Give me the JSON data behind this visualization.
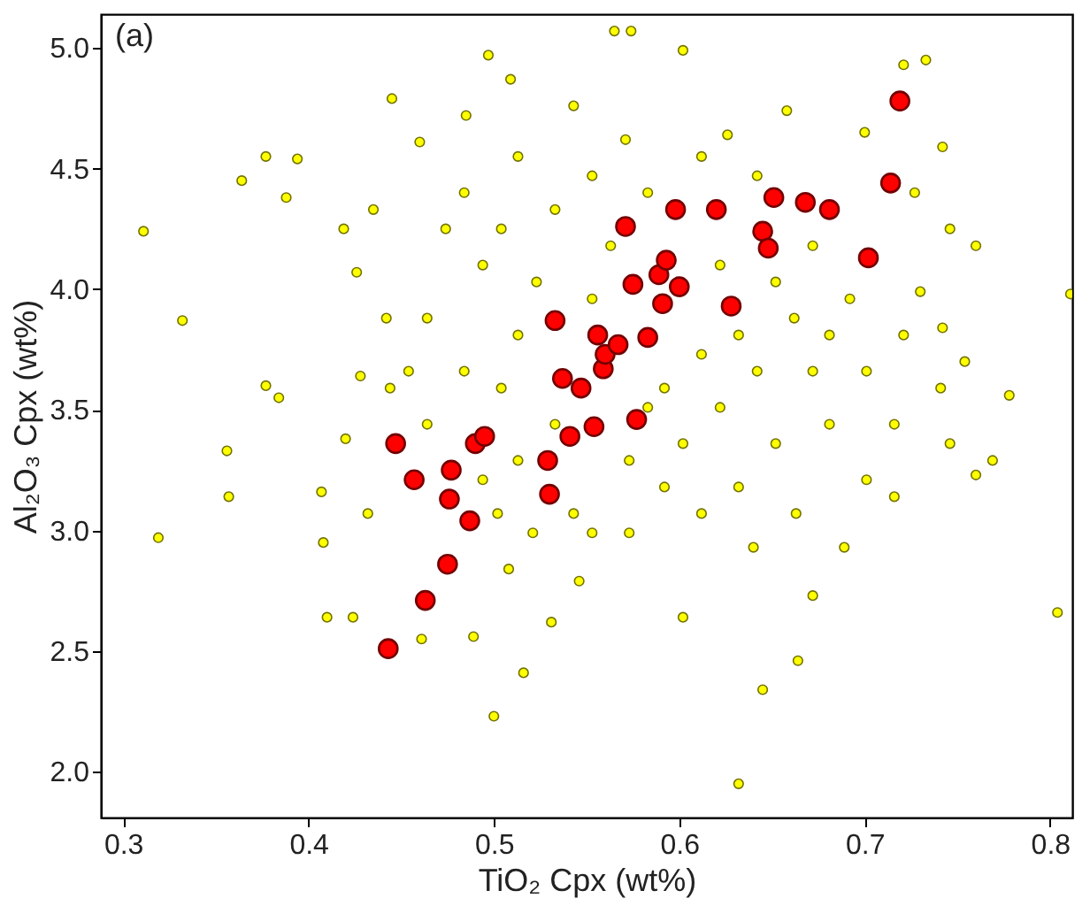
{
  "chart_data": {
    "type": "scatter",
    "xlabel": "TiO₂ Cpx (wt%)",
    "ylabel": "Al₂O₃ Cpx (wt%)",
    "xlim": [
      0.288,
      0.812
    ],
    "ylim": [
      1.81,
      5.14
    ],
    "xticks": [
      0.3,
      0.4,
      0.5,
      0.6,
      0.7,
      0.8
    ],
    "yticks": [
      {
        "value": 2,
        "label": "2.0"
      },
      2.5,
      {
        "value": 3,
        "label": "3.0"
      },
      3.5,
      {
        "value": 4,
        "label": "4.0"
      },
      4.5,
      {
        "value": 5,
        "label": "5.0"
      }
    ],
    "grid": false,
    "marker": "circle",
    "annotations": [
      "(a)"
    ],
    "series": [
      {
        "color": "#ffff00",
        "x": [
          0.311,
          0.319,
          0.332,
          0.357,
          0.356,
          0.364,
          0.377,
          0.388,
          0.394,
          0.384,
          0.377,
          0.407,
          0.408,
          0.424,
          0.41,
          0.445,
          0.5,
          0.516,
          0.632,
          0.645,
          0.664,
          0.804,
          0.811,
          0.778,
          0.742,
          0.76,
          0.746,
          0.769,
          0.733,
          0.721,
          0.565,
          0.574,
          0.602,
          0.497,
          0.64,
          0.672,
          0.602,
          0.546,
          0.508,
          0.531,
          0.489,
          0.461,
          0.432,
          0.42,
          0.428,
          0.442,
          0.426,
          0.419,
          0.435,
          0.46,
          0.485,
          0.509,
          0.543,
          0.571,
          0.626,
          0.658,
          0.7,
          0.727,
          0.73,
          0.742,
          0.754,
          0.716,
          0.701,
          0.716,
          0.689,
          0.663,
          0.632,
          0.612,
          0.592,
          0.573,
          0.553,
          0.521,
          0.502,
          0.504,
          0.513,
          0.523,
          0.494,
          0.474,
          0.464,
          0.454,
          0.533,
          0.553,
          0.583,
          0.612,
          0.642,
          0.672,
          0.692,
          0.672,
          0.642,
          0.622,
          0.602,
          0.652,
          0.681,
          0.701,
          0.721,
          0.612,
          0.632,
          0.662,
          0.592,
          0.573,
          0.543,
          0.464,
          0.444,
          0.484,
          0.484,
          0.513,
          0.504,
          0.563,
          0.622,
          0.652,
          0.681,
          0.553,
          0.583,
          0.533,
          0.513,
          0.494,
          0.741,
          0.76,
          0.746
        ],
        "values": [
          4.24,
          2.97,
          3.87,
          3.14,
          3.33,
          4.45,
          4.55,
          4.38,
          4.54,
          3.55,
          3.6,
          3.16,
          2.95,
          2.64,
          2.64,
          4.79,
          2.23,
          2.41,
          1.95,
          2.34,
          2.46,
          2.66,
          3.98,
          3.56,
          4.59,
          3.23,
          3.36,
          3.29,
          4.95,
          4.93,
          5.07,
          5.07,
          4.99,
          4.97,
          2.93,
          2.73,
          2.64,
          2.79,
          2.84,
          2.62,
          2.56,
          2.55,
          3.07,
          3.38,
          3.64,
          3.88,
          4.07,
          4.25,
          4.33,
          4.61,
          4.72,
          4.87,
          4.76,
          4.62,
          4.64,
          4.74,
          4.65,
          4.4,
          3.99,
          3.84,
          3.7,
          3.44,
          3.21,
          3.14,
          2.93,
          3.07,
          3.18,
          3.07,
          3.18,
          2.99,
          2.99,
          2.99,
          3.07,
          3.59,
          3.81,
          4.03,
          4.1,
          4.25,
          3.88,
          3.66,
          4.33,
          4.47,
          4.4,
          4.55,
          4.47,
          4.18,
          3.96,
          3.66,
          3.66,
          3.51,
          3.36,
          3.36,
          3.44,
          3.66,
          3.81,
          3.73,
          3.81,
          3.88,
          3.59,
          3.29,
          3.07,
          3.44,
          3.59,
          3.66,
          4.4,
          4.55,
          4.25,
          4.18,
          4.1,
          4.03,
          3.81,
          3.96,
          3.51,
          3.44,
          3.29,
          3.21,
          3.59,
          4.18,
          4.25
        ]
      },
      {
        "color": "#ff0000",
        "x": [
          0.443,
          0.463,
          0.475,
          0.487,
          0.476,
          0.457,
          0.477,
          0.447,
          0.49,
          0.495,
          0.53,
          0.529,
          0.541,
          0.554,
          0.577,
          0.547,
          0.537,
          0.533,
          0.556,
          0.559,
          0.56,
          0.567,
          0.583,
          0.575,
          0.589,
          0.6,
          0.591,
          0.593,
          0.571,
          0.598,
          0.62,
          0.645,
          0.651,
          0.648,
          0.668,
          0.681,
          0.702,
          0.714,
          0.719,
          0.628
        ],
        "values": [
          2.51,
          2.71,
          2.86,
          3.04,
          3.13,
          3.21,
          3.25,
          3.36,
          3.36,
          3.39,
          3.15,
          3.29,
          3.39,
          3.43,
          3.46,
          3.59,
          3.63,
          3.87,
          3.81,
          3.67,
          3.73,
          3.77,
          3.8,
          4.02,
          4.06,
          4.01,
          3.94,
          4.12,
          4.26,
          4.33,
          4.33,
          4.24,
          4.38,
          4.17,
          4.36,
          4.33,
          4.13,
          4.44,
          4.78,
          3.93
        ]
      }
    ]
  }
}
